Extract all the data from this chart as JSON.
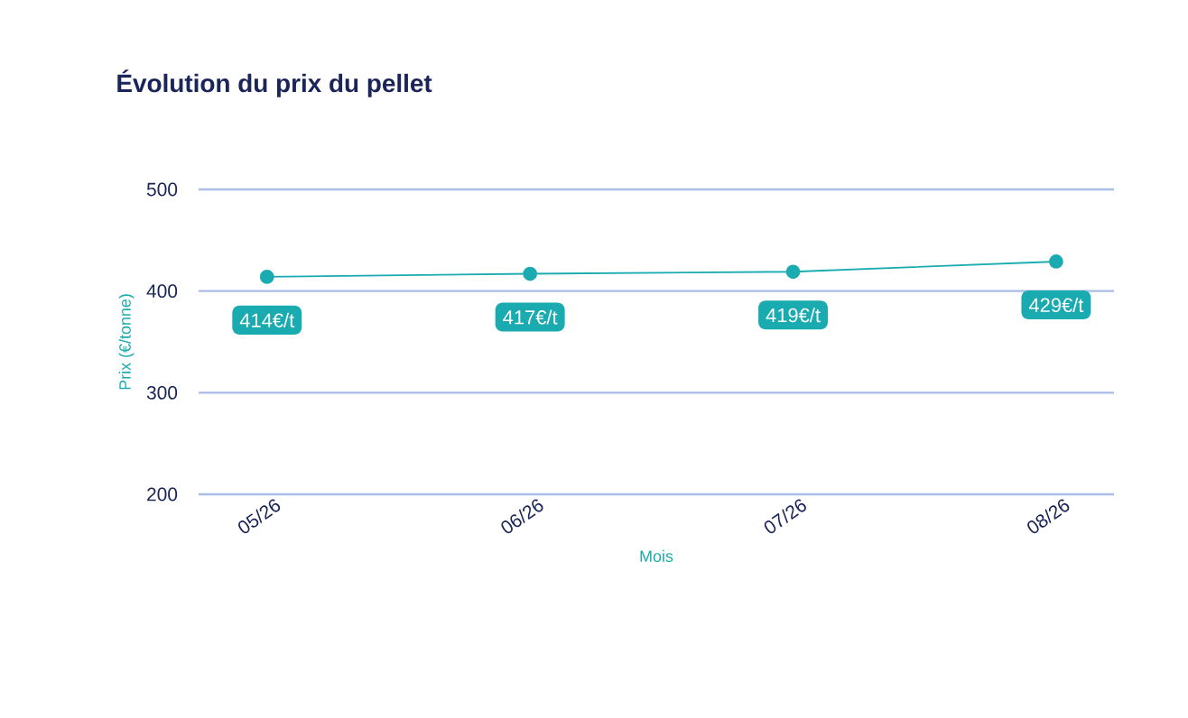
{
  "chart_data": {
    "type": "line",
    "title": "Évolution du prix du pellet",
    "xlabel": "Mois",
    "ylabel": "Prix (€/tonne)",
    "categories": [
      "05/26",
      "06/26",
      "07/26",
      "08/26"
    ],
    "values": [
      414,
      417,
      419,
      429
    ],
    "value_labels": [
      "414€/t",
      "417€/t",
      "419€/t",
      "429€/t"
    ],
    "color": "#1aabb0",
    "marker": "circle",
    "grid": "y",
    "ylim": [
      200,
      500
    ],
    "yticks": [
      200,
      300,
      400,
      500
    ]
  }
}
